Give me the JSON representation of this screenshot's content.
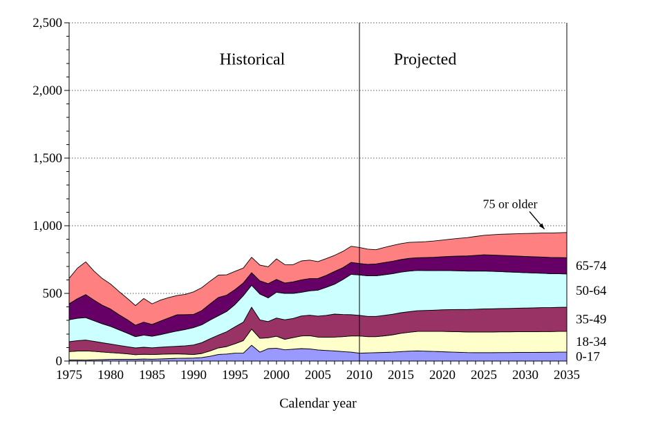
{
  "chart_data": {
    "type": "area",
    "stacked": true,
    "title": "",
    "xlabel": "Calendar year",
    "ylabel": "",
    "xlim": [
      1975,
      2035
    ],
    "ylim": [
      0,
      2500
    ],
    "ytick_step": 500,
    "ytick_minor_step": 100,
    "xtick_label_step": 5,
    "xtick_minor_step": 1,
    "grid": "horizontal-dotted",
    "legend_position": "right-of-plot-inline-band-labels",
    "ytick_labels": [
      "0",
      "500",
      "1,000",
      "1,500",
      "2,000",
      "2,500"
    ],
    "xtick_labels": [
      "1975",
      "1980",
      "1985",
      "1990",
      "1995",
      "2000",
      "2005",
      "2010",
      "2015",
      "2020",
      "2025",
      "2030",
      "2035"
    ],
    "divider": {
      "x": 2010,
      "left_label": "Historical",
      "right_label": "Projected"
    },
    "annotation": {
      "text": "75 or older",
      "arrow": {
        "x1": 2030.5,
        "y1": 1105,
        "x2": 2032.3,
        "y2": 975
      }
    },
    "x": [
      1975,
      1976,
      1977,
      1978,
      1979,
      1980,
      1981,
      1982,
      1983,
      1984,
      1985,
      1986,
      1987,
      1988,
      1989,
      1990,
      1991,
      1992,
      1993,
      1994,
      1995,
      1996,
      1997,
      1998,
      1999,
      2000,
      2001,
      2002,
      2003,
      2004,
      2005,
      2006,
      2007,
      2008,
      2009,
      2010,
      2011,
      2012,
      2013,
      2014,
      2015,
      2016,
      2017,
      2018,
      2019,
      2020,
      2021,
      2022,
      2023,
      2024,
      2025,
      2026,
      2027,
      2028,
      2029,
      2030,
      2031,
      2032,
      2033,
      2034,
      2035
    ],
    "series": [
      {
        "name": "0-17",
        "color": "#9999FF",
        "values": [
          8,
          8,
          7,
          9,
          10,
          12,
          13,
          13,
          13,
          15,
          14,
          16,
          18,
          20,
          21,
          22,
          26,
          35,
          49,
          52,
          58,
          58,
          117,
          66,
          92,
          95,
          83,
          88,
          92,
          90,
          82,
          78,
          75,
          70,
          66,
          58,
          60,
          62,
          64,
          66,
          70,
          73,
          75,
          73,
          71,
          69,
          67,
          65,
          63,
          62,
          62,
          62,
          63,
          63,
          64,
          64,
          64,
          65,
          65,
          66,
          66
        ]
      },
      {
        "name": "18-34",
        "color": "#FFFFCC",
        "values": [
          62,
          66,
          68,
          63,
          57,
          50,
          45,
          40,
          34,
          35,
          34,
          34,
          34,
          33,
          30,
          26,
          30,
          40,
          48,
          55,
          70,
          93,
          119,
          102,
          80,
          88,
          77,
          85,
          93,
          97,
          95,
          98,
          102,
          110,
          119,
          127,
          120,
          118,
          122,
          128,
          135,
          140,
          144,
          146,
          148,
          150,
          151,
          152,
          152,
          153,
          153,
          153,
          153,
          153,
          153,
          153,
          153,
          153,
          153,
          153,
          153
        ]
      },
      {
        "name": "35-49",
        "color": "#993366",
        "values": [
          73,
          77,
          80,
          74,
          68,
          64,
          58,
          53,
          50,
          52,
          50,
          52,
          54,
          56,
          62,
          71,
          80,
          90,
          95,
          110,
          125,
          136,
          162,
          136,
          120,
          135,
          145,
          142,
          148,
          152,
          155,
          162,
          170,
          164,
          158,
          153,
          150,
          150,
          152,
          152,
          152,
          152,
          153,
          155,
          157,
          160,
          162,
          164,
          166,
          168,
          170,
          171,
          172,
          173,
          174,
          175,
          176,
          177,
          177,
          178,
          179
        ]
      },
      {
        "name": "50-64",
        "color": "#CCFFFF",
        "values": [
          162,
          165,
          166,
          152,
          140,
          130,
          115,
          100,
          83,
          90,
          85,
          93,
          103,
          113,
          120,
          128,
          132,
          138,
          143,
          150,
          165,
          196,
          162,
          191,
          175,
          190,
          195,
          185,
          175,
          180,
          192,
          207,
          221,
          258,
          298,
          298,
          300,
          300,
          300,
          300,
          300,
          300,
          298,
          295,
          292,
          290,
          288,
          286,
          284,
          282,
          281,
          277,
          273,
          269,
          265,
          261,
          258,
          254,
          251,
          248,
          246
        ]
      },
      {
        "name": "65-74",
        "color": "#660066",
        "values": [
          118,
          145,
          170,
          152,
          138,
          128,
          112,
          100,
          85,
          95,
          88,
          100,
          110,
          120,
          110,
          98,
          105,
          120,
          135,
          120,
          110,
          94,
          93,
          98,
          105,
          95,
          77,
          85,
          92,
          90,
          86,
          88,
          94,
          88,
          88,
          85,
          85,
          88,
          90,
          92,
          93,
          94,
          94,
          96,
          99,
          102,
          106,
          109,
          112,
          116,
          119,
          120,
          120,
          120,
          120,
          120,
          120,
          120,
          120,
          120,
          120
        ]
      },
      {
        "name": "75 or older",
        "color": "#FF8080",
        "values": [
          188,
          225,
          242,
          215,
          197,
          185,
          172,
          158,
          145,
          175,
          152,
          155,
          150,
          142,
          150,
          166,
          170,
          168,
          165,
          150,
          135,
          110,
          114,
          116,
          125,
          152,
          136,
          127,
          140,
          137,
          125,
          124,
          119,
          120,
          119,
          119,
          112,
          105,
          112,
          116,
          118,
          118,
          115,
          117,
          120,
          123,
          127,
          131,
          135,
          140,
          144,
          150,
          156,
          161,
          165,
          170,
          173,
          177,
          180,
          183,
          186
        ]
      }
    ]
  }
}
